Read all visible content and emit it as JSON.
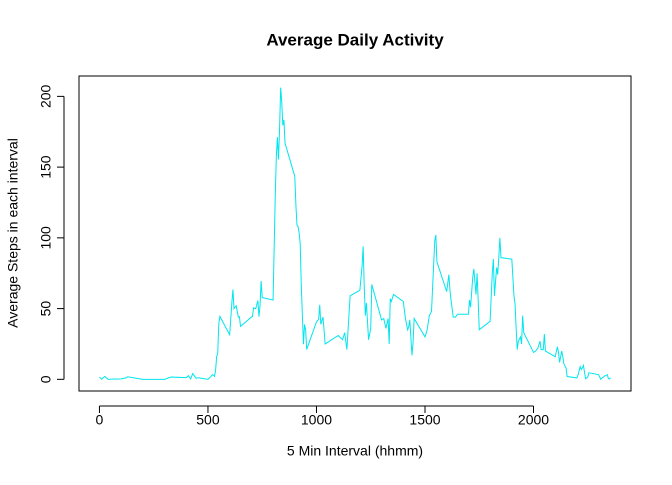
{
  "chart_data": {
    "type": "line",
    "title": "Average Daily Activity",
    "xlabel": "5 Min Interval (hhmm)",
    "ylabel": "Average Steps in each interval",
    "color": "#00E5EE",
    "x": [
      0,
      10,
      25,
      40,
      55,
      100,
      125,
      130,
      200,
      230,
      300,
      330,
      400,
      410,
      420,
      430,
      445,
      455,
      500,
      515,
      520,
      525,
      530,
      535,
      540,
      545,
      550,
      555,
      600,
      610,
      615,
      620,
      630,
      640,
      645,
      650,
      700,
      705,
      710,
      720,
      730,
      735,
      740,
      745,
      750,
      800,
      810,
      815,
      820,
      825,
      830,
      835,
      840,
      845,
      850,
      855,
      900,
      905,
      910,
      915,
      920,
      925,
      930,
      935,
      940,
      945,
      950,
      955,
      1000,
      1010,
      1015,
      1020,
      1030,
      1040,
      1100,
      1120,
      1130,
      1140,
      1150,
      1155,
      1200,
      1210,
      1215,
      1220,
      1225,
      1230,
      1240,
      1250,
      1255,
      1300,
      1310,
      1320,
      1330,
      1335,
      1340,
      1345,
      1355,
      1400,
      1410,
      1420,
      1425,
      1430,
      1440,
      1445,
      1450,
      1500,
      1510,
      1520,
      1530,
      1545,
      1550,
      1555,
      1600,
      1610,
      1615,
      1620,
      1630,
      1640,
      1650,
      1700,
      1705,
      1710,
      1720,
      1725,
      1730,
      1735,
      1740,
      1745,
      1750,
      1800,
      1805,
      1810,
      1815,
      1820,
      1830,
      1835,
      1840,
      1845,
      1850,
      1900,
      1910,
      1915,
      1920,
      1925,
      1930,
      1940,
      1945,
      1950,
      1955,
      2000,
      2010,
      2020,
      2030,
      2035,
      2045,
      2050,
      2055,
      2100,
      2110,
      2115,
      2120,
      2130,
      2135,
      2140,
      2150,
      2155,
      2200,
      2205,
      2215,
      2220,
      2225,
      2230,
      2240,
      2250,
      2255,
      2300,
      2310,
      2315,
      2330,
      2340,
      2345,
      2350,
      2355
    ],
    "values": [
      1.7,
      0.1,
      2.1,
      0,
      0.1,
      0.3,
      1.1,
      1.8,
      0,
      0,
      0,
      1.6,
      1.2,
      2.6,
      0.3,
      4.1,
      0.8,
      1.1,
      0,
      2.2,
      3.3,
      3,
      2.1,
      6.1,
      16,
      18.3,
      39.5,
      44.5,
      31.5,
      53.8,
      63.5,
      50,
      52,
      44,
      44.2,
      37.4,
      44,
      44.4,
      50.5,
      49.9,
      55.7,
      44.3,
      52.3,
      69.5,
      57.8,
      56.1,
      129.4,
      157.5,
      171.2,
      155.4,
      177.3,
      206.2,
      195.9,
      179.6,
      183.4,
      167,
      143.5,
      124,
      109.1,
      108.1,
      103.7,
      95.9,
      66.2,
      45.2,
      24.8,
      38.8,
      35,
      21.1,
      40.6,
      42.4,
      52.7,
      38.9,
      44,
      25,
      31,
      28,
      33,
      21,
      46,
      59,
      63,
      80,
      94,
      66,
      45,
      54,
      28,
      36,
      67,
      42,
      43,
      36,
      43,
      25,
      57,
      55,
      60,
      55,
      43,
      35,
      37,
      42,
      17,
      26,
      43,
      30,
      35,
      45,
      48,
      98,
      102,
      83,
      62,
      74,
      63,
      56,
      44,
      44,
      46,
      46,
      56,
      51,
      72,
      78,
      69,
      60,
      75,
      56,
      35,
      41,
      58,
      75,
      85,
      59,
      79,
      74,
      86,
      100,
      86,
      85,
      59,
      53,
      36,
      21,
      27,
      30,
      25,
      45,
      33,
      19,
      20,
      22,
      27,
      21,
      21,
      32,
      20,
      16,
      23,
      19,
      12,
      20,
      16,
      11,
      8,
      2,
      1,
      3,
      9,
      7,
      8,
      9.8,
      0.4,
      1.6,
      4.6,
      3.3,
      0,
      0.8,
      2.6,
      3.3,
      0.6,
      0.2,
      1.1
    ],
    "xlim": [
      -94.2,
      2449.2
    ],
    "ylim": [
      -8.25,
      214.4
    ],
    "xticks": [
      0,
      500,
      1000,
      1500,
      2000
    ],
    "yticks": [
      0,
      50,
      100,
      150,
      200
    ]
  }
}
